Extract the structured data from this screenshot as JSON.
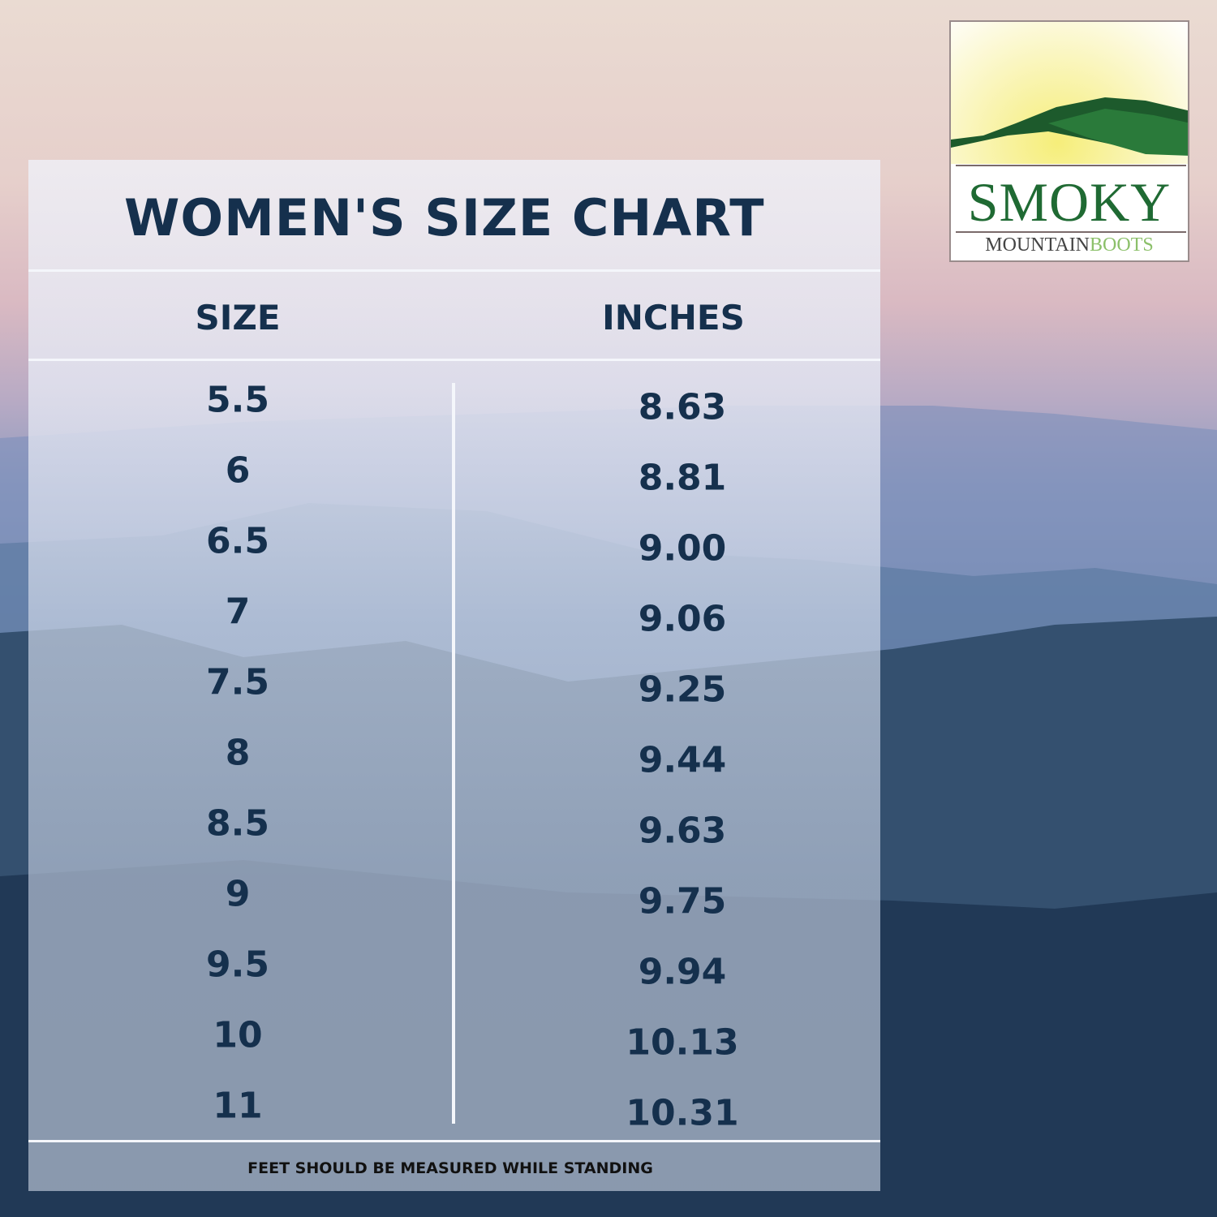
{
  "title": "WOMEN'S SIZE CHART",
  "columns": {
    "size": "SIZE",
    "inches": "INCHES"
  },
  "rows": [
    {
      "size": "5.5",
      "inches": "8.63"
    },
    {
      "size": "6",
      "inches": "8.81"
    },
    {
      "size": "6.5",
      "inches": "9.00"
    },
    {
      "size": "7",
      "inches": "9.06"
    },
    {
      "size": "7.5",
      "inches": "9.25"
    },
    {
      "size": "8",
      "inches": "9.44"
    },
    {
      "size": "8.5",
      "inches": "9.63"
    },
    {
      "size": "9",
      "inches": "9.75"
    },
    {
      "size": "9.5",
      "inches": "9.94"
    },
    {
      "size": "10",
      "inches": "10.13"
    },
    {
      "size": "11",
      "inches": "10.31"
    }
  ],
  "footer_note": "FEET SHOULD BE MEASURED WHILE STANDING",
  "logo": {
    "line1": "SMOKY",
    "line2a": "MOUNTAIN",
    "line2b": "BOOTS"
  },
  "colors": {
    "text": "#15304d",
    "logo_green": "#1f6a33",
    "logo_light_green": "#8cc06a"
  }
}
